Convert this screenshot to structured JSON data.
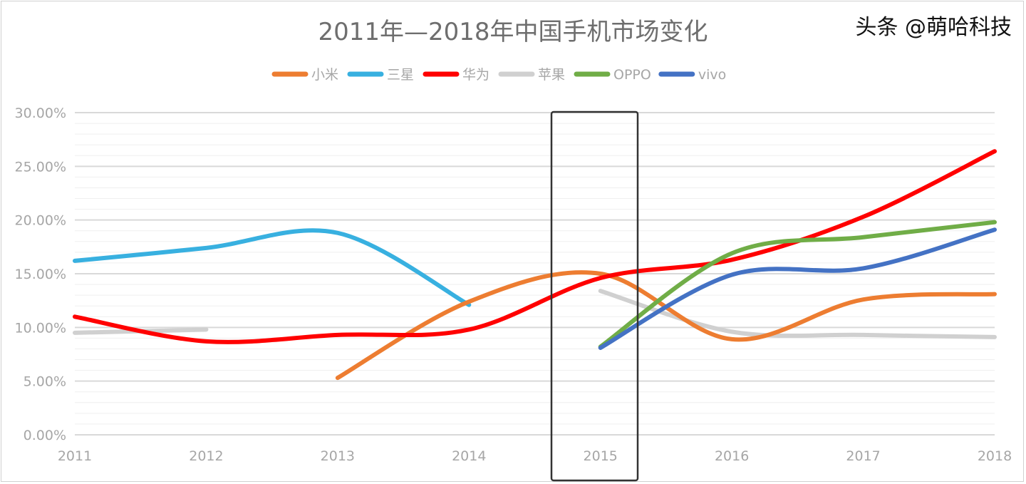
{
  "chart_data": {
    "type": "line",
    "title": "2011年—2018年中国手机市场变化",
    "categories": [
      "2011",
      "2012",
      "2013",
      "2014",
      "2015",
      "2016",
      "2017",
      "2018"
    ],
    "yticks": [
      "0.00%",
      "5.00%",
      "10.00%",
      "15.00%",
      "20.00%",
      "25.00%",
      "30.00%"
    ],
    "ylim": [
      0,
      30
    ],
    "y_unit": "%",
    "grid": "major every 5%, minor every 1%",
    "legend_position": "top",
    "smooth": true,
    "series": [
      {
        "name": "小米",
        "color": "#ED7D31",
        "values": [
          null,
          null,
          5.3,
          12.4,
          15.0,
          8.9,
          12.6,
          13.1
        ]
      },
      {
        "name": "三星",
        "color": "#38B0E0",
        "values": [
          16.2,
          17.4,
          18.8,
          12.1,
          null,
          null,
          null,
          null
        ]
      },
      {
        "name": "华为",
        "color": "#FF0000",
        "values": [
          11.0,
          8.7,
          9.3,
          9.8,
          14.6,
          16.3,
          20.3,
          26.4
        ]
      },
      {
        "name": "苹果",
        "color": "#D0D0D0",
        "values": [
          9.5,
          9.8,
          null,
          null,
          13.4,
          9.6,
          9.3,
          9.1
        ]
      },
      {
        "name": "OPPO",
        "color": "#70AD47",
        "values": [
          null,
          null,
          null,
          null,
          8.2,
          16.9,
          18.4,
          19.8
        ]
      },
      {
        "name": "vivo",
        "color": "#4472C4",
        "values": [
          null,
          null,
          null,
          null,
          8.1,
          14.9,
          15.5,
          19.1
        ]
      }
    ],
    "annotation": {
      "type": "highlight-box",
      "category": "2015"
    }
  },
  "watermark": "头条 @萌哈科技"
}
